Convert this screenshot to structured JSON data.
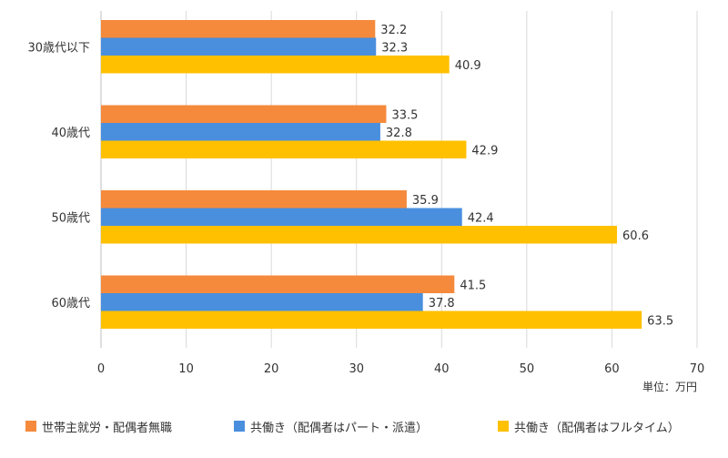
{
  "chart_data": {
    "type": "bar",
    "orientation": "horizontal",
    "categories": [
      "30歳代以下",
      "40歳代",
      "50歳代",
      "60歳代"
    ],
    "series": [
      {
        "name": "世帯主就労・配偶者無職",
        "color": "#F58A3C",
        "values": [
          32.2,
          33.5,
          35.9,
          41.5
        ]
      },
      {
        "name": "共働き（配偶者はパート・派遣）",
        "color": "#4A8FDE",
        "values": [
          32.3,
          32.8,
          42.4,
          37.8
        ]
      },
      {
        "name": "共働き（配偶者はフルタイム）",
        "color": "#FFC000",
        "values": [
          40.9,
          42.9,
          60.6,
          63.5
        ]
      }
    ],
    "xlim": [
      0,
      70
    ],
    "xticks": [
      0,
      10,
      20,
      30,
      40,
      50,
      60,
      70
    ],
    "unit_label": "単位：万円",
    "grid": true,
    "legend_position": "bottom"
  }
}
